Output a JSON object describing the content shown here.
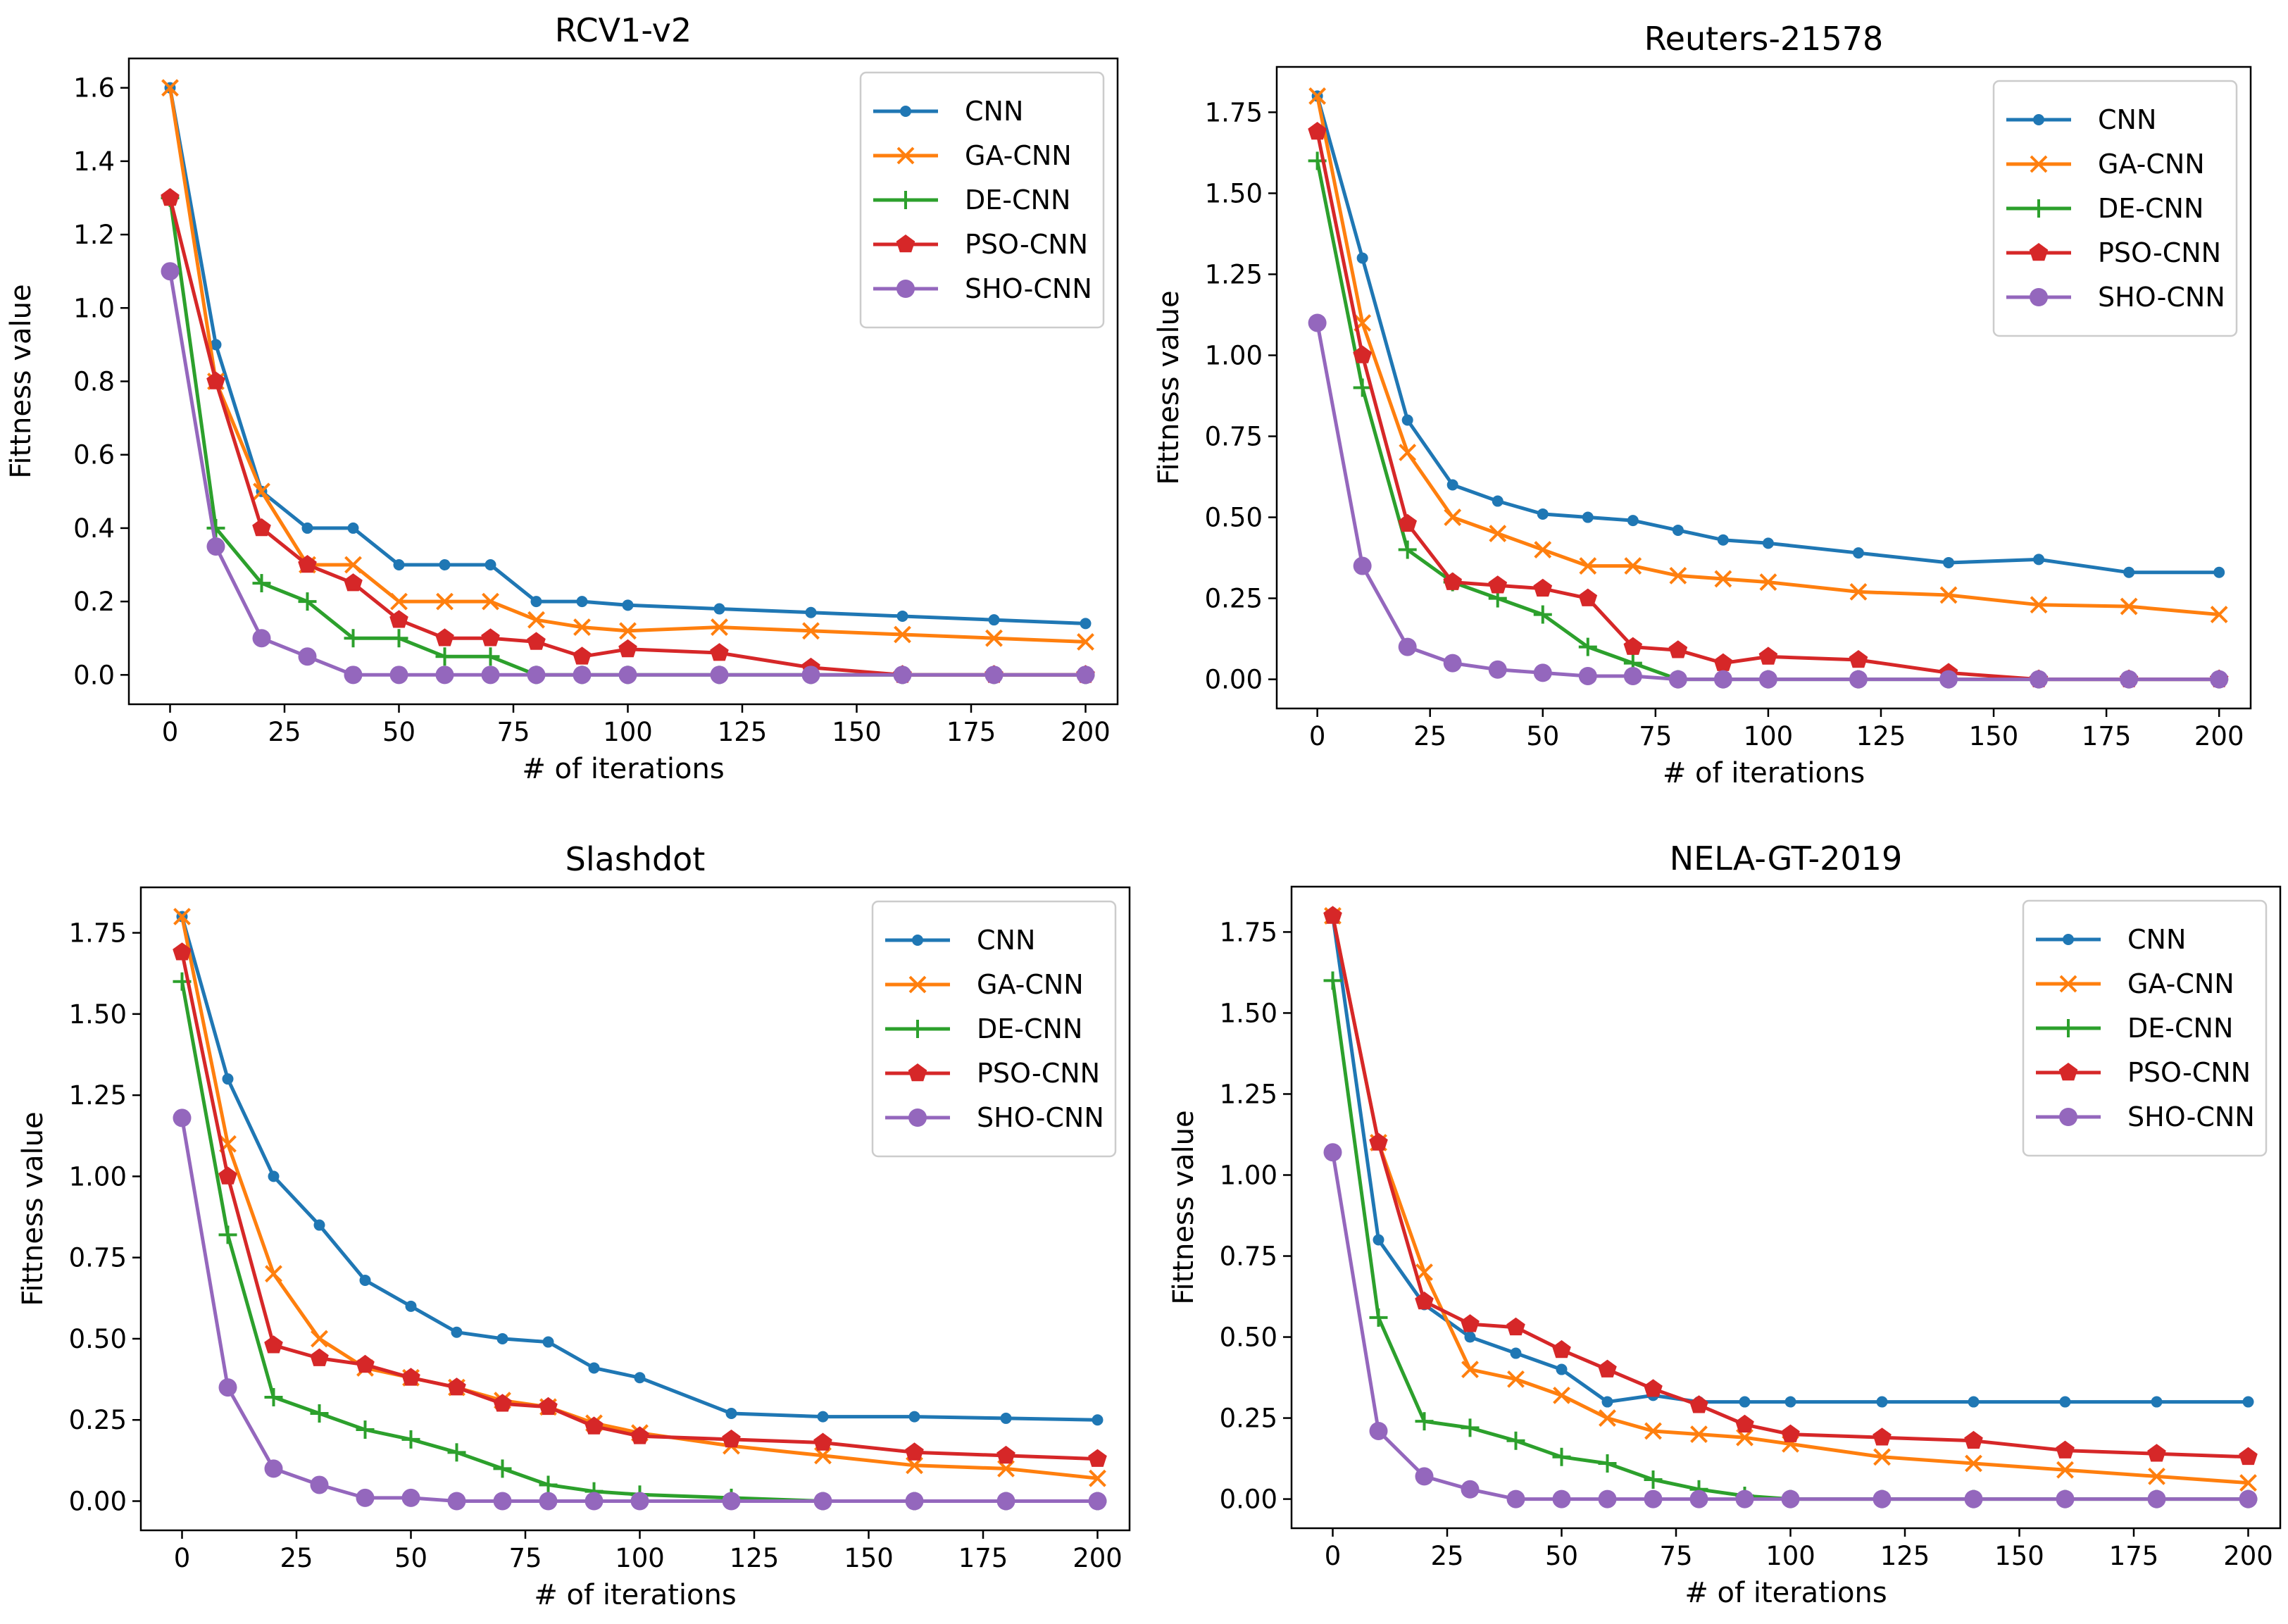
{
  "colors": {
    "CNN": "#1f77b4",
    "GA-CNN": "#ff7f0e",
    "DE-CNN": "#2ca02c",
    "PSO-CNN": "#d62728",
    "SHO-CNN": "#9467bd"
  },
  "markers": {
    "CNN": "dot",
    "GA-CNN": "x",
    "DE-CNN": "plus",
    "PSO-CNN": "pentagon",
    "SHO-CNN": "circle"
  },
  "chart_data": [
    {
      "type": "line",
      "title": "RCV1-v2",
      "xlabel": "# of iterations",
      "ylabel": "Fittness value",
      "xlim": [
        -9,
        207
      ],
      "ylim": [
        -0.08,
        1.68
      ],
      "xticks": [
        0,
        25,
        50,
        75,
        100,
        125,
        150,
        175,
        200
      ],
      "xtick_labels": [
        "0",
        "25",
        "50",
        "75",
        "100",
        "125",
        "150",
        "175",
        "200"
      ],
      "yticks": [
        0,
        0.2,
        0.4,
        0.6,
        0.8,
        1.0,
        1.2,
        1.4,
        1.6
      ],
      "ytick_labels": [
        "0.0",
        "0.2",
        "0.4",
        "0.6",
        "0.8",
        "1.0",
        "1.2",
        "1.4",
        "1.6"
      ],
      "legend": "top-right",
      "x": [
        0,
        10,
        20,
        30,
        40,
        50,
        60,
        70,
        80,
        90,
        100,
        120,
        140,
        160,
        180,
        200
      ],
      "series": [
        {
          "name": "CNN",
          "values": [
            1.6,
            0.9,
            0.5,
            0.4,
            0.4,
            0.3,
            0.3,
            0.3,
            0.2,
            0.2,
            0.19,
            0.18,
            0.17,
            0.16,
            0.15,
            0.14
          ]
        },
        {
          "name": "GA-CNN",
          "values": [
            1.6,
            0.8,
            0.5,
            0.3,
            0.3,
            0.2,
            0.2,
            0.2,
            0.15,
            0.13,
            0.12,
            0.13,
            0.12,
            0.11,
            0.1,
            0.09
          ]
        },
        {
          "name": "DE-CNN",
          "values": [
            1.3,
            0.4,
            0.25,
            0.2,
            0.1,
            0.1,
            0.05,
            0.05,
            0.0,
            0.0,
            0.0,
            0.0,
            0.0,
            0.0,
            0.0,
            0.0
          ]
        },
        {
          "name": "PSO-CNN",
          "values": [
            1.3,
            0.8,
            0.4,
            0.3,
            0.25,
            0.15,
            0.1,
            0.1,
            0.09,
            0.05,
            0.07,
            0.06,
            0.02,
            0.0,
            0.0,
            0.0
          ]
        },
        {
          "name": "SHO-CNN",
          "values": [
            1.1,
            0.35,
            0.1,
            0.05,
            0.0,
            0.0,
            0.0,
            0.0,
            0.0,
            0.0,
            0.0,
            0.0,
            0.0,
            0.0,
            0.0,
            0.0
          ]
        }
      ]
    },
    {
      "type": "line",
      "title": "Reuters-21578",
      "xlabel": "# of iterations",
      "ylabel": "Fittness value",
      "xlim": [
        -9,
        207
      ],
      "ylim": [
        -0.09,
        1.89
      ],
      "xticks": [
        0,
        25,
        50,
        75,
        100,
        125,
        150,
        175,
        200
      ],
      "xtick_labels": [
        "0",
        "25",
        "50",
        "75",
        "100",
        "125",
        "150",
        "175",
        "200"
      ],
      "yticks": [
        0,
        0.25,
        0.5,
        0.75,
        1.0,
        1.25,
        1.5,
        1.75
      ],
      "ytick_labels": [
        "0.00",
        "0.25",
        "0.50",
        "0.75",
        "1.00",
        "1.25",
        "1.50",
        "1.75"
      ],
      "legend": "top-right",
      "x": [
        0,
        10,
        20,
        30,
        40,
        50,
        60,
        70,
        80,
        90,
        100,
        120,
        140,
        160,
        180,
        200
      ],
      "series": [
        {
          "name": "CNN",
          "values": [
            1.8,
            1.3,
            0.8,
            0.6,
            0.55,
            0.51,
            0.5,
            0.49,
            0.46,
            0.43,
            0.42,
            0.39,
            0.36,
            0.37,
            0.33,
            0.33
          ]
        },
        {
          "name": "GA-CNN",
          "values": [
            1.8,
            1.1,
            0.7,
            0.5,
            0.45,
            0.4,
            0.35,
            0.35,
            0.32,
            0.31,
            0.3,
            0.27,
            0.26,
            0.23,
            0.225,
            0.2
          ]
        },
        {
          "name": "DE-CNN",
          "values": [
            1.6,
            0.9,
            0.4,
            0.3,
            0.25,
            0.2,
            0.1,
            0.05,
            0.0,
            0.0,
            0.0,
            0.0,
            0.0,
            0.0,
            0.0,
            0.0
          ]
        },
        {
          "name": "PSO-CNN",
          "values": [
            1.69,
            1.0,
            0.48,
            0.3,
            0.29,
            0.28,
            0.25,
            0.1,
            0.09,
            0.05,
            0.07,
            0.06,
            0.02,
            0.0,
            0.0,
            0.0
          ]
        },
        {
          "name": "SHO-CNN",
          "values": [
            1.1,
            0.35,
            0.1,
            0.05,
            0.03,
            0.02,
            0.01,
            0.01,
            0.0,
            0.0,
            0.0,
            0.0,
            0.0,
            0.0,
            0.0,
            0.0
          ]
        }
      ]
    },
    {
      "type": "line",
      "title": "Slashdot",
      "xlabel": "# of iterations",
      "ylabel": "Fittness value",
      "xlim": [
        -9,
        207
      ],
      "ylim": [
        -0.09,
        1.89
      ],
      "xticks": [
        0,
        25,
        50,
        75,
        100,
        125,
        150,
        175,
        200
      ],
      "xtick_labels": [
        "0",
        "25",
        "50",
        "75",
        "100",
        "125",
        "150",
        "175",
        "200"
      ],
      "yticks": [
        0,
        0.25,
        0.5,
        0.75,
        1.0,
        1.25,
        1.5,
        1.75
      ],
      "ytick_labels": [
        "0.00",
        "0.25",
        "0.50",
        "0.75",
        "1.00",
        "1.25",
        "1.50",
        "1.75"
      ],
      "legend": "top-right",
      "x": [
        0,
        10,
        20,
        30,
        40,
        50,
        60,
        70,
        80,
        90,
        100,
        120,
        140,
        160,
        180,
        200
      ],
      "series": [
        {
          "name": "CNN",
          "values": [
            1.8,
            1.3,
            1.0,
            0.85,
            0.68,
            0.6,
            0.52,
            0.5,
            0.49,
            0.41,
            0.38,
            0.27,
            0.26,
            0.26,
            0.255,
            0.25
          ]
        },
        {
          "name": "GA-CNN",
          "values": [
            1.8,
            1.1,
            0.7,
            0.5,
            0.41,
            0.38,
            0.35,
            0.31,
            0.29,
            0.24,
            0.21,
            0.17,
            0.14,
            0.11,
            0.1,
            0.07
          ]
        },
        {
          "name": "DE-CNN",
          "values": [
            1.6,
            0.82,
            0.32,
            0.27,
            0.22,
            0.19,
            0.15,
            0.1,
            0.05,
            0.03,
            0.02,
            0.01,
            0.0,
            0.0,
            0.0,
            0.0
          ]
        },
        {
          "name": "PSO-CNN",
          "values": [
            1.69,
            1.0,
            0.48,
            0.44,
            0.42,
            0.38,
            0.35,
            0.3,
            0.29,
            0.23,
            0.2,
            0.19,
            0.18,
            0.15,
            0.14,
            0.13
          ]
        },
        {
          "name": "SHO-CNN",
          "values": [
            1.18,
            0.35,
            0.1,
            0.05,
            0.01,
            0.01,
            0.0,
            0.0,
            0.0,
            0.0,
            0.0,
            0.0,
            0.0,
            0.0,
            0.0,
            0.0
          ]
        }
      ]
    },
    {
      "type": "line",
      "title": "NELA-GT-2019",
      "xlabel": "# of iterations",
      "ylabel": "Fittness value",
      "xlim": [
        -9,
        207
      ],
      "ylim": [
        -0.09,
        1.89
      ],
      "xticks": [
        0,
        25,
        50,
        75,
        100,
        125,
        150,
        175,
        200
      ],
      "xtick_labels": [
        "0",
        "25",
        "50",
        "75",
        "100",
        "125",
        "150",
        "175",
        "200"
      ],
      "yticks": [
        0,
        0.25,
        0.5,
        0.75,
        1.0,
        1.25,
        1.5,
        1.75
      ],
      "ytick_labels": [
        "0.00",
        "0.25",
        "0.50",
        "0.75",
        "1.00",
        "1.25",
        "1.50",
        "1.75"
      ],
      "legend": "top-right",
      "x": [
        0,
        10,
        20,
        30,
        40,
        50,
        60,
        70,
        80,
        90,
        100,
        120,
        140,
        160,
        180,
        200
      ],
      "series": [
        {
          "name": "CNN",
          "values": [
            1.8,
            0.8,
            0.6,
            0.5,
            0.45,
            0.4,
            0.3,
            0.32,
            0.3,
            0.3,
            0.3,
            0.3,
            0.3,
            0.3,
            0.3,
            0.3
          ]
        },
        {
          "name": "GA-CNN",
          "values": [
            1.8,
            1.1,
            0.7,
            0.4,
            0.37,
            0.32,
            0.25,
            0.21,
            0.2,
            0.19,
            0.17,
            0.13,
            0.11,
            0.09,
            0.07,
            0.05
          ]
        },
        {
          "name": "DE-CNN",
          "values": [
            1.6,
            0.56,
            0.24,
            0.22,
            0.18,
            0.13,
            0.11,
            0.06,
            0.03,
            0.01,
            0.0,
            0.0,
            0.0,
            0.0,
            0.0,
            0.0
          ]
        },
        {
          "name": "PSO-CNN",
          "values": [
            1.8,
            1.1,
            0.61,
            0.54,
            0.53,
            0.46,
            0.4,
            0.34,
            0.29,
            0.23,
            0.2,
            0.19,
            0.18,
            0.15,
            0.14,
            0.13
          ]
        },
        {
          "name": "SHO-CNN",
          "values": [
            1.07,
            0.21,
            0.07,
            0.03,
            0.0,
            0.0,
            0.0,
            0.0,
            0.0,
            0.0,
            0.0,
            0.0,
            0.0,
            0.0,
            0.0,
            0.0
          ]
        }
      ]
    }
  ]
}
